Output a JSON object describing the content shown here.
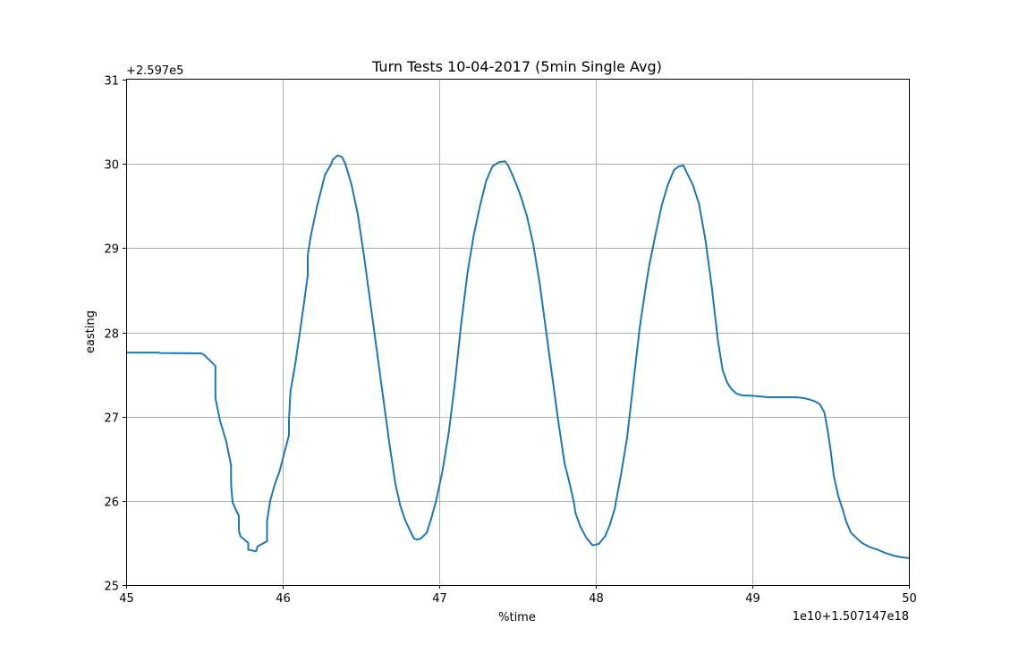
{
  "chart_data": {
    "type": "line",
    "title": "Turn Tests 10-04-2017 (5min Single Avg)",
    "xlabel": "%time",
    "ylabel": "easting",
    "x_offset_label": "1e10+1.507147e18",
    "y_offset_label": "+2.597e5",
    "xlim": [
      45,
      50
    ],
    "ylim": [
      25,
      31
    ],
    "x_ticks": [
      "45",
      "46",
      "47",
      "48",
      "49",
      "50"
    ],
    "y_ticks": [
      "25",
      "26",
      "27",
      "28",
      "29",
      "30",
      "31"
    ],
    "grid": true,
    "line_color": "#1f77b4",
    "series": [
      {
        "x": [
          45.0,
          45.2,
          45.22,
          45.48,
          45.5,
          45.57,
          45.57,
          45.6,
          45.64,
          45.67,
          45.67,
          45.68,
          45.72,
          45.72,
          45.73,
          45.78,
          45.78,
          45.83,
          45.84,
          45.9,
          45.9,
          45.92,
          45.95,
          45.98,
          46.04,
          46.04,
          46.05,
          46.08,
          46.11,
          46.14,
          46.16,
          46.16,
          46.18,
          46.22,
          46.27,
          46.31,
          46.32,
          46.35,
          46.38,
          46.4,
          46.44,
          46.48,
          46.52,
          46.56,
          46.6,
          46.64,
          46.68,
          46.72,
          46.75,
          46.78,
          46.82,
          46.84,
          46.86,
          46.88,
          46.92,
          46.95,
          46.98,
          47.02,
          47.06,
          47.1,
          47.14,
          47.18,
          47.22,
          47.26,
          47.3,
          47.34,
          47.38,
          47.42,
          47.44,
          47.47,
          47.5,
          47.52,
          47.56,
          47.6,
          47.64,
          47.68,
          47.72,
          47.76,
          47.8,
          47.84,
          47.86,
          47.87,
          47.9,
          47.94,
          47.98,
          48.02,
          48.06,
          48.09,
          48.12,
          48.16,
          48.2,
          48.24,
          48.28,
          48.32,
          48.34,
          48.38,
          48.42,
          48.46,
          48.5,
          48.53,
          48.56,
          48.58,
          48.62,
          48.66,
          48.7,
          48.74,
          48.78,
          48.81,
          48.84,
          48.87,
          48.9,
          48.94,
          48.98,
          49.05,
          49.1,
          49.2,
          49.28,
          49.33,
          49.37,
          49.4,
          49.43,
          49.46,
          49.48,
          49.5,
          49.52,
          49.55,
          49.58,
          49.6,
          49.63,
          49.67,
          49.7,
          49.75,
          49.8,
          49.85,
          49.9,
          49.95,
          50.0
        ],
        "y": [
          27.76,
          27.76,
          27.755,
          27.75,
          27.73,
          27.6,
          27.22,
          26.95,
          26.7,
          26.42,
          26.2,
          25.98,
          25.82,
          25.65,
          25.58,
          25.5,
          25.42,
          25.4,
          25.46,
          25.52,
          25.76,
          26.0,
          26.2,
          26.35,
          26.78,
          26.96,
          27.3,
          27.62,
          28.0,
          28.4,
          28.68,
          28.92,
          29.15,
          29.5,
          29.87,
          30.0,
          30.05,
          30.1,
          30.08,
          30.0,
          29.75,
          29.4,
          28.9,
          28.35,
          27.8,
          27.25,
          26.7,
          26.2,
          25.95,
          25.78,
          25.62,
          25.55,
          25.54,
          25.55,
          25.62,
          25.8,
          26.0,
          26.35,
          26.8,
          27.4,
          28.1,
          28.7,
          29.15,
          29.5,
          29.8,
          29.97,
          30.02,
          30.03,
          29.98,
          29.86,
          29.72,
          29.62,
          29.38,
          29.05,
          28.6,
          28.05,
          27.5,
          26.95,
          26.45,
          26.15,
          25.98,
          25.86,
          25.7,
          25.56,
          25.47,
          25.49,
          25.58,
          25.72,
          25.9,
          26.3,
          26.75,
          27.4,
          28.05,
          28.55,
          28.78,
          29.15,
          29.5,
          29.75,
          29.93,
          29.97,
          29.98,
          29.9,
          29.75,
          29.52,
          29.1,
          28.55,
          27.9,
          27.55,
          27.4,
          27.32,
          27.27,
          27.25,
          27.25,
          27.24,
          27.23,
          27.23,
          27.23,
          27.22,
          27.2,
          27.18,
          27.15,
          27.05,
          26.85,
          26.6,
          26.3,
          26.05,
          25.88,
          25.75,
          25.62,
          25.55,
          25.5,
          25.45,
          25.42,
          25.38,
          25.35,
          25.33,
          25.32
        ]
      }
    ]
  }
}
